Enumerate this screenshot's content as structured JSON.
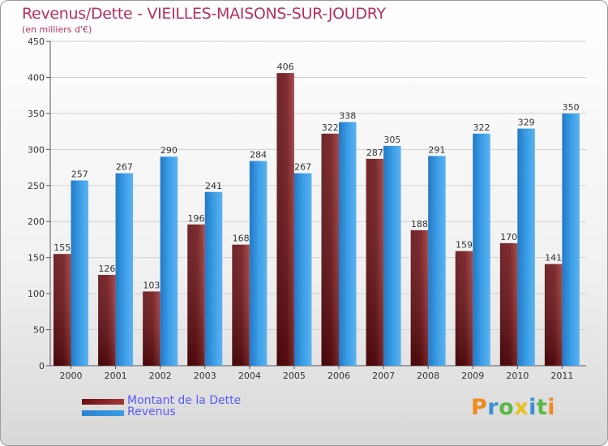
{
  "header": {
    "title": "Revenus/Dette - VIEILLES-MAISONS-SUR-JOUDRY",
    "subtitle": "(en milliers d'€)"
  },
  "colors": {
    "title": "#b5305e",
    "dette": "#6b0f12",
    "revenus": "#3a9de6",
    "legend_text": "#5a5aff"
  },
  "legend": {
    "dette_label": "Montant de la Dette",
    "revenus_label": "Revenus"
  },
  "logo": {
    "letters": [
      "P",
      "r",
      "o",
      "x",
      "i",
      "t",
      "i"
    ],
    "colors": [
      "#f08a1e",
      "#3a8fd8",
      "#59b847",
      "#e8c21a",
      "#3a8fd8",
      "#59b847",
      "#f08a1e"
    ]
  },
  "chart_data": {
    "type": "bar",
    "title": "Revenus/Dette - VIEILLES-MAISONS-SUR-JOUDRY",
    "ylabel": "(en milliers d'€)",
    "xlabel": "",
    "categories": [
      "2000",
      "2001",
      "2002",
      "2003",
      "2004",
      "2005",
      "2006",
      "2007",
      "2008",
      "2009",
      "2010",
      "2011"
    ],
    "series": [
      {
        "name": "Montant de la Dette",
        "values": [
          155,
          126,
          103,
          196,
          168,
          406,
          322,
          287,
          188,
          159,
          170,
          141
        ]
      },
      {
        "name": "Revenus",
        "values": [
          257,
          267,
          290,
          241,
          284,
          267,
          338,
          305,
          291,
          322,
          329,
          350
        ]
      }
    ],
    "ylim": [
      0,
      450
    ],
    "yticks": [
      0,
      50,
      100,
      150,
      200,
      250,
      300,
      350,
      400,
      450
    ],
    "grid": true
  }
}
